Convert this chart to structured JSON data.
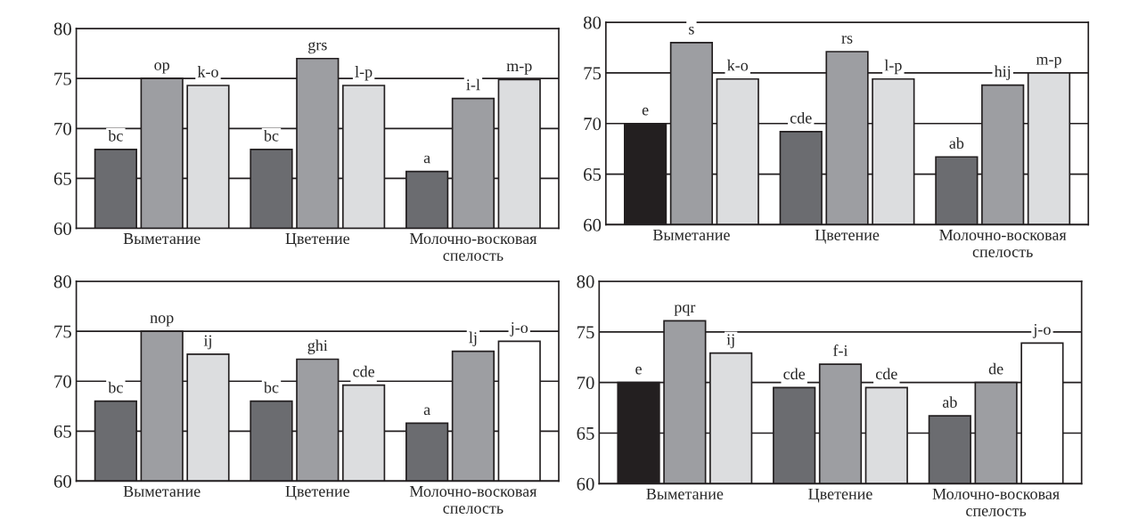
{
  "chart_data": [
    {
      "type": "bar",
      "categories": [
        "Выметание",
        "Цветение",
        "Молочно-восковая\nспелость"
      ],
      "ylim": [
        60,
        80
      ],
      "yticks": [
        60,
        65,
        70,
        75,
        80
      ],
      "grid": "y",
      "series": [
        {
          "colors": [
            "#6b6c70",
            "#6b6c70",
            "#6b6c70"
          ],
          "values": [
            67.9,
            67.9,
            65.7
          ],
          "value_labels": [
            "bc",
            "bc",
            "a"
          ]
        },
        {
          "colors": [
            "#9d9ea2",
            "#9d9ea2",
            "#9d9ea2"
          ],
          "values": [
            75.0,
            77.0,
            73.0
          ],
          "value_labels": [
            "op",
            "grs",
            "i-l"
          ]
        },
        {
          "colors": [
            "#dcdddf",
            "#dcdddf",
            "#dcdddf"
          ],
          "values": [
            74.3,
            74.3,
            74.9
          ],
          "value_labels": [
            "k-o",
            "l-p",
            "m-p"
          ]
        }
      ]
    },
    {
      "type": "bar",
      "categories": [
        "Выметание",
        "Цветение",
        "Молочно-восковая\nспелость"
      ],
      "ylim": [
        60,
        80
      ],
      "yticks": [
        60,
        65,
        70,
        75,
        80
      ],
      "grid": "y",
      "series": [
        {
          "colors": [
            "#231f20",
            "#6b6c70",
            "#6b6c70"
          ],
          "values": [
            70.0,
            69.2,
            66.7
          ],
          "value_labels": [
            "e",
            "cde",
            "ab"
          ]
        },
        {
          "colors": [
            "#9d9ea2",
            "#9d9ea2",
            "#9d9ea2"
          ],
          "values": [
            78.0,
            77.1,
            73.8
          ],
          "value_labels": [
            "s",
            "rs",
            "hij"
          ]
        },
        {
          "colors": [
            "#dcdddf",
            "#dcdddf",
            "#dcdddf"
          ],
          "values": [
            74.4,
            74.4,
            75.0
          ],
          "value_labels": [
            "k-o",
            "l-p",
            "m-p"
          ]
        }
      ]
    },
    {
      "type": "bar",
      "categories": [
        "Выметание",
        "Цветение",
        "Молочно-восковая\nспелость"
      ],
      "ylim": [
        60,
        80
      ],
      "yticks": [
        60,
        65,
        70,
        75,
        80
      ],
      "grid": "y",
      "series": [
        {
          "colors": [
            "#6b6c70",
            "#6b6c70",
            "#6b6c70"
          ],
          "values": [
            68.0,
            68.0,
            65.8
          ],
          "value_labels": [
            "bc",
            "bc",
            "a"
          ]
        },
        {
          "colors": [
            "#9d9ea2",
            "#9d9ea2",
            "#9d9ea2"
          ],
          "values": [
            75.0,
            72.2,
            73.0
          ],
          "value_labels": [
            "nop",
            "ghi",
            "lj"
          ]
        },
        {
          "colors": [
            "#dcdddf",
            "#dcdddf",
            "#ffffff"
          ],
          "values": [
            72.7,
            69.6,
            74.0
          ],
          "value_labels": [
            "ij",
            "cde",
            "j-o"
          ]
        }
      ]
    },
    {
      "type": "bar",
      "categories": [
        "Выметание",
        "Цветение",
        "Молочно-восковая\nспелость"
      ],
      "ylim": [
        60,
        80
      ],
      "yticks": [
        60,
        65,
        70,
        75,
        80
      ],
      "grid": "y",
      "series": [
        {
          "colors": [
            "#231f20",
            "#6b6c70",
            "#6b6c70"
          ],
          "values": [
            70.0,
            69.5,
            66.7
          ],
          "value_labels": [
            "e",
            "cde",
            "ab"
          ]
        },
        {
          "colors": [
            "#9d9ea2",
            "#9d9ea2",
            "#9d9ea2"
          ],
          "values": [
            76.1,
            71.8,
            70.0
          ],
          "value_labels": [
            "pqr",
            "f-i",
            "de"
          ]
        },
        {
          "colors": [
            "#dcdddf",
            "#dcdddf",
            "#ffffff"
          ],
          "values": [
            72.9,
            69.5,
            73.9
          ],
          "value_labels": [
            "ij",
            "cde",
            "j-o"
          ]
        }
      ]
    }
  ]
}
